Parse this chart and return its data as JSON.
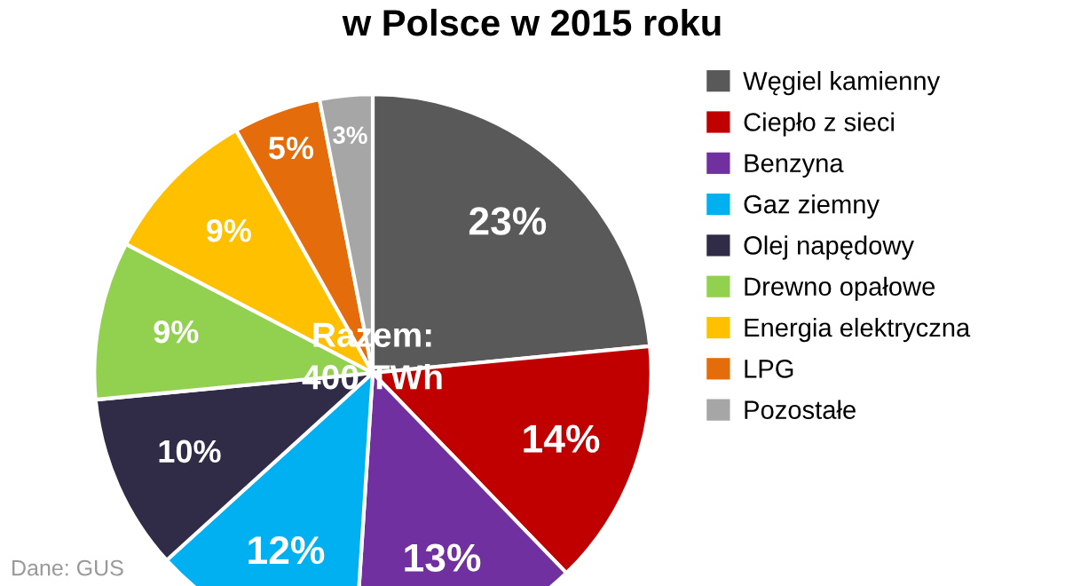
{
  "chart_data": {
    "type": "pie",
    "title": "w Polsce w 2015 roku",
    "categories": [
      "Węgiel kamienny",
      "Ciepło z sieci",
      "Benzyna",
      "Gaz ziemny",
      "Olej napędowy",
      "Drewno opałowe",
      "Energia elektryczna",
      "LPG",
      "Pozostałe"
    ],
    "values": [
      23,
      14,
      13,
      12,
      10,
      9,
      9,
      5,
      3
    ],
    "value_labels": [
      "23%",
      "14%",
      "13%",
      "12%",
      "10%",
      "9%",
      "9%",
      "5%",
      "3%"
    ],
    "colors": [
      "#595959",
      "#c00000",
      "#7030a0",
      "#00b0f0",
      "#302c48",
      "#92d050",
      "#ffc000",
      "#e46c0a",
      "#a6a6a6"
    ],
    "legend": "right",
    "annotations": [
      "Razem:\n400 TWh",
      "Dane: GUS"
    ]
  }
}
